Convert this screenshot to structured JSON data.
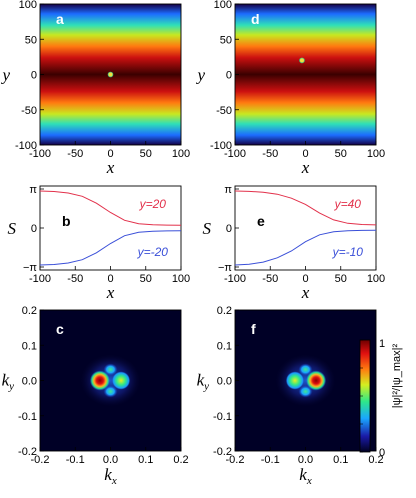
{
  "chart_data": [
    {
      "panel": "a",
      "type": "heatmap",
      "xlabel": "x",
      "ylabel": "y",
      "xlim": [
        -100,
        100
      ],
      "ylim": [
        -100,
        100
      ],
      "xticks": [
        -100,
        -50,
        0,
        50,
        100
      ],
      "yticks": [
        -100,
        -50,
        0,
        50,
        100
      ],
      "vortex": {
        "x": 0,
        "y": 0
      }
    },
    {
      "panel": "d",
      "type": "heatmap",
      "xlabel": "x",
      "ylabel": "y",
      "xlim": [
        -100,
        100
      ],
      "ylim": [
        -100,
        100
      ],
      "xticks": [
        -100,
        -50,
        0,
        50,
        100
      ],
      "yticks": [
        -100,
        -50,
        0,
        50,
        100
      ],
      "vortex": {
        "x": -5,
        "y": 20
      }
    },
    {
      "panel": "b",
      "type": "line",
      "xlabel": "x",
      "ylabel": "S",
      "xlim": [
        -100,
        100
      ],
      "xticks": [
        -100,
        -50,
        0,
        50,
        100
      ],
      "yticklabels": [
        "π",
        "0",
        "−π"
      ],
      "series": [
        {
          "name": "y=20",
          "color": "#e2304a",
          "x": [
            -100,
            -80,
            -60,
            -40,
            -20,
            0,
            20,
            40,
            60,
            80,
            100
          ],
          "y": [
            2.98,
            2.94,
            2.82,
            2.55,
            2.0,
            1.25,
            0.62,
            0.35,
            0.26,
            0.23,
            0.22
          ]
        },
        {
          "name": "y=-20",
          "color": "#3a4fd8",
          "x": [
            -100,
            -80,
            -60,
            -40,
            -20,
            0,
            20,
            40,
            60,
            80,
            100
          ],
          "y": [
            -2.98,
            -2.94,
            -2.82,
            -2.55,
            -2.0,
            -1.25,
            -0.62,
            -0.35,
            -0.26,
            -0.23,
            -0.22
          ]
        }
      ]
    },
    {
      "panel": "e",
      "type": "line",
      "xlabel": "x",
      "ylabel": "S",
      "xlim": [
        -100,
        100
      ],
      "xticks": [
        -100,
        -50,
        0,
        50,
        100
      ],
      "yticklabels": [
        "π",
        "0",
        "−π"
      ],
      "series": [
        {
          "name": "y=40",
          "color": "#e2304a",
          "x": [
            -100,
            -80,
            -60,
            -40,
            -20,
            0,
            20,
            40,
            60,
            80,
            100
          ],
          "y": [
            2.98,
            2.95,
            2.88,
            2.72,
            2.4,
            1.9,
            1.2,
            0.65,
            0.38,
            0.28,
            0.25
          ]
        },
        {
          "name": "y=-10",
          "color": "#3a4fd8",
          "x": [
            -100,
            -80,
            -60,
            -40,
            -20,
            0,
            20,
            40,
            60,
            80,
            100
          ],
          "y": [
            -2.98,
            -2.92,
            -2.75,
            -2.4,
            -1.85,
            -1.1,
            -0.55,
            -0.3,
            -0.22,
            -0.19,
            -0.18
          ]
        }
      ]
    },
    {
      "panel": "c",
      "type": "heatmap",
      "xlabel": "k_x",
      "ylabel": "k_y",
      "xlim": [
        -0.2,
        0.2
      ],
      "ylim": [
        -0.2,
        0.2
      ],
      "xticks": [
        -0.2,
        -0.1,
        0.0,
        0.1,
        0.2
      ],
      "yticks": [
        -0.2,
        -0.1,
        0.0,
        0.1,
        0.2
      ],
      "peak": {
        "kx": -0.03,
        "ky": 0.0
      }
    },
    {
      "panel": "f",
      "type": "heatmap",
      "xlabel": "k_x",
      "ylabel": "k_y",
      "xlim": [
        -0.2,
        0.2
      ],
      "ylim": [
        -0.2,
        0.2
      ],
      "xticks": [
        -0.2,
        -0.1,
        0.0,
        0.1,
        0.2
      ],
      "yticks": [
        -0.2,
        -0.1,
        0.0,
        0.1,
        0.2
      ],
      "peak": {
        "kx": 0.03,
        "ky": 0.0
      }
    }
  ],
  "colorbar": {
    "label": "|ψ|²/|ψ_max|²",
    "min_label": "0",
    "max_label": "1",
    "colors": [
      "#000020",
      "#1a1aa6",
      "#1aa6ff",
      "#2ee88a",
      "#d4ee20",
      "#ff7a10",
      "#e01010",
      "#6e0000"
    ]
  },
  "panel_labels": [
    "a",
    "b",
    "c",
    "d",
    "e",
    "f"
  ]
}
